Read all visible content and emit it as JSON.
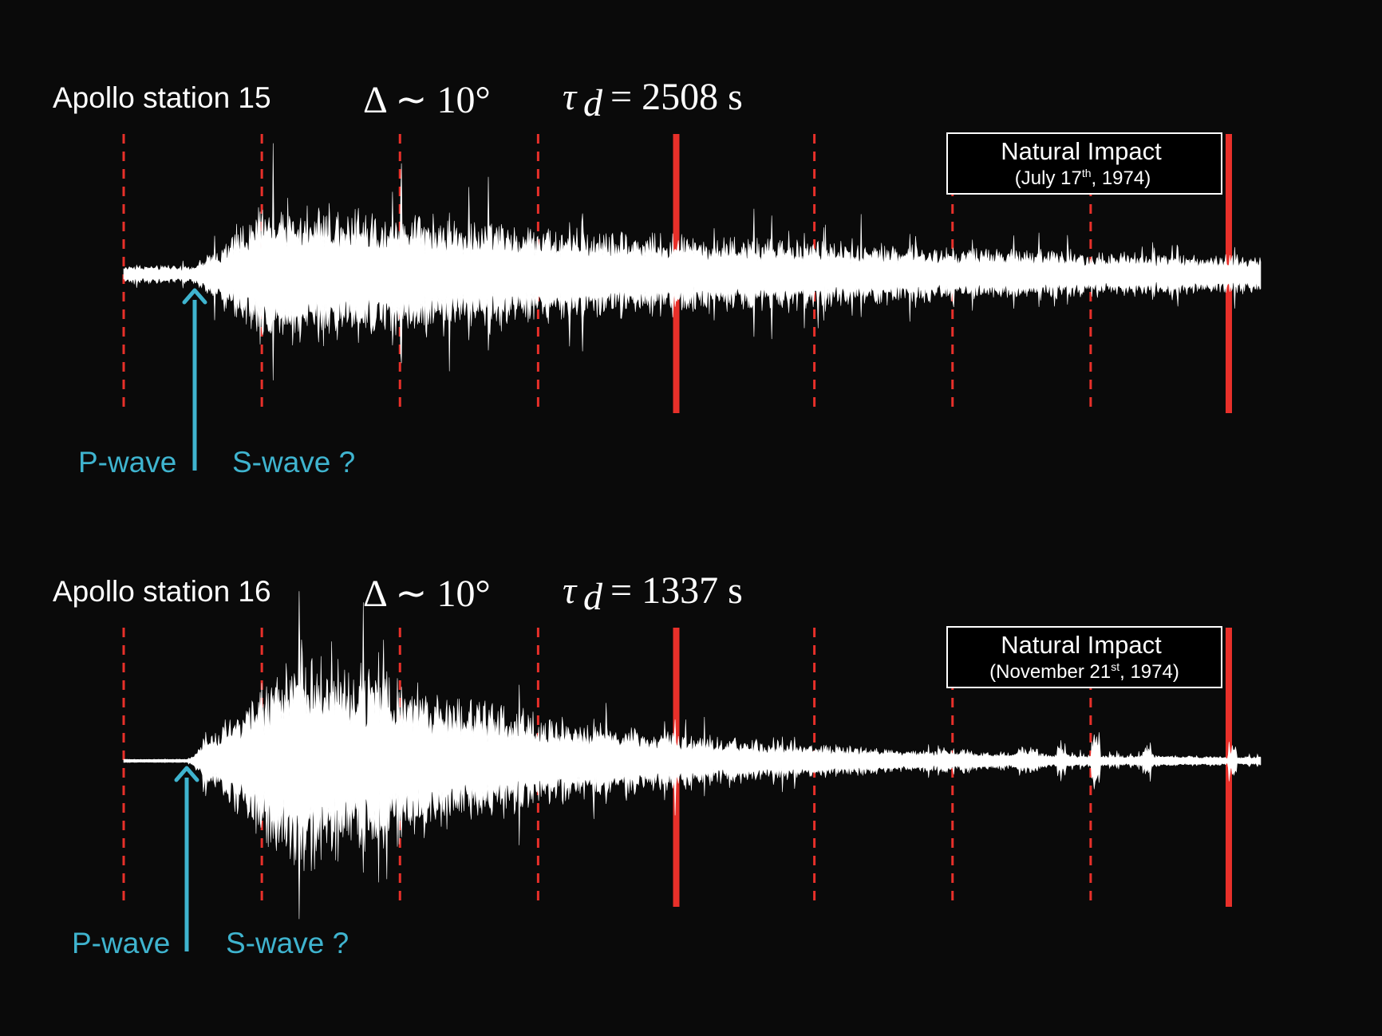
{
  "colors": {
    "background": "#0a0a0a",
    "waveform": "#ffffff",
    "marker": "#e8302a",
    "arrow": "#3fb4cf",
    "text": "#ffffff"
  },
  "chart_data": [
    {
      "type": "waveform",
      "title": "Apollo station 15",
      "distance": "Δ ∼ 10°",
      "tau_symbol": "τ",
      "tau_subscript": "d",
      "tau_value": "= 2508 s",
      "labels": {
        "p_wave": "P-wave",
        "s_wave": "S-wave ?"
      },
      "annotation": {
        "title": "Natural Impact",
        "date_prefix": "(July 17",
        "date_sup": "th",
        "date_suffix": ", 1974)"
      },
      "marker_slots": 9,
      "solid_markers": [
        4,
        8
      ],
      "p_wave_fraction": 0.063,
      "envelope": {
        "noise_level": 0.06,
        "peak_level": 0.55,
        "rise_fraction": 0.07,
        "decay": 0.45,
        "tail_level": 0.09
      }
    },
    {
      "type": "waveform",
      "title": "Apollo station 16",
      "distance": "Δ ∼ 10°",
      "tau_symbol": "τ",
      "tau_subscript": "d",
      "tau_value": "= 1337 s",
      "labels": {
        "p_wave": "P-wave",
        "s_wave": "S-wave ?"
      },
      "annotation": {
        "title": "Natural Impact",
        "date_prefix": "(November 21",
        "date_sup": "st",
        "date_suffix": ", 1974)"
      },
      "marker_slots": 9,
      "solid_markers": [
        4,
        8
      ],
      "p_wave_fraction": 0.057,
      "envelope": {
        "noise_level": 0.005,
        "peak_level": 0.85,
        "rise_fraction": 0.1,
        "decay": 0.22,
        "tail_level": 0.02
      }
    }
  ]
}
